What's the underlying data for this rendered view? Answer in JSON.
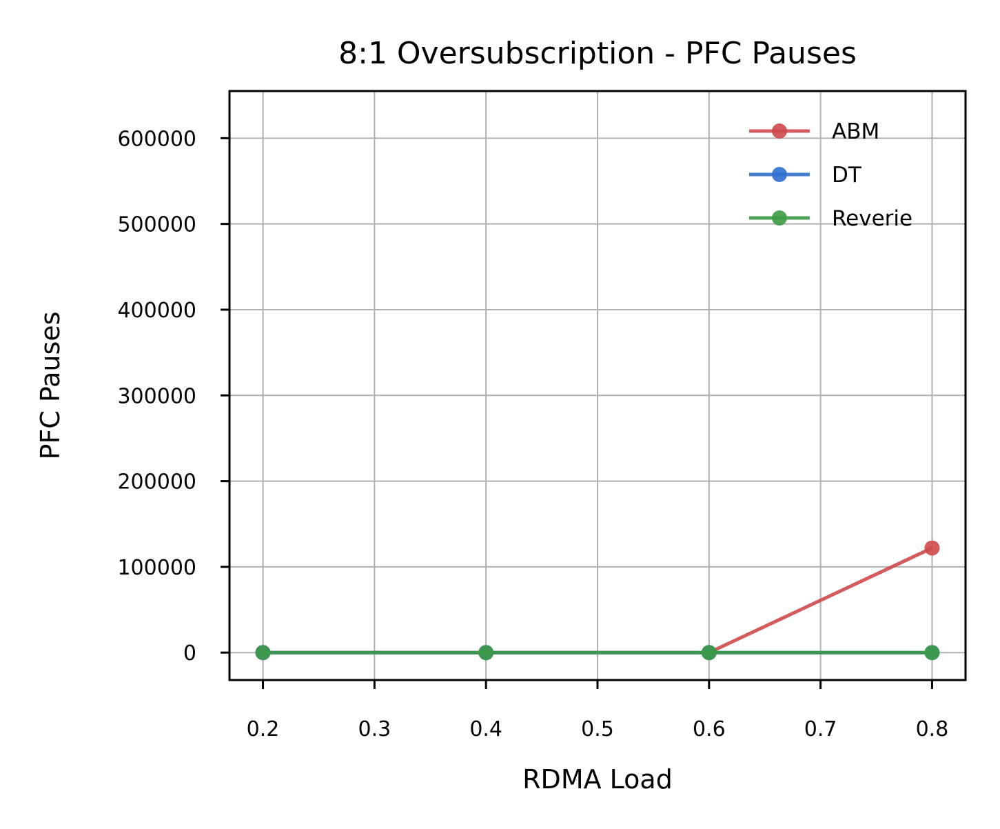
{
  "chart_data": {
    "type": "line",
    "title": "8:1 Oversubscription - PFC Pauses",
    "xlabel": "RDMA Load",
    "ylabel": "PFC Pauses",
    "x": [
      0.2,
      0.4,
      0.6,
      0.8
    ],
    "xticks": [
      "0.2",
      "0.3",
      "0.4",
      "0.5",
      "0.6",
      "0.7",
      "0.8"
    ],
    "yticks": [
      "0",
      "100000",
      "200000",
      "300000",
      "400000",
      "500000",
      "600000"
    ],
    "xlim": [
      0.17,
      0.83
    ],
    "ylim": [
      -32000,
      655000
    ],
    "grid": true,
    "legend_position": "top-right",
    "series": [
      {
        "name": "ABM",
        "color": "#d0484b",
        "values": [
          0,
          0,
          0,
          122000
        ]
      },
      {
        "name": "DT",
        "color": "#2f6fce",
        "values": [
          0,
          0,
          0,
          0
        ]
      },
      {
        "name": "Reverie",
        "color": "#3c9a45",
        "values": [
          0,
          0,
          0,
          0
        ]
      }
    ]
  }
}
